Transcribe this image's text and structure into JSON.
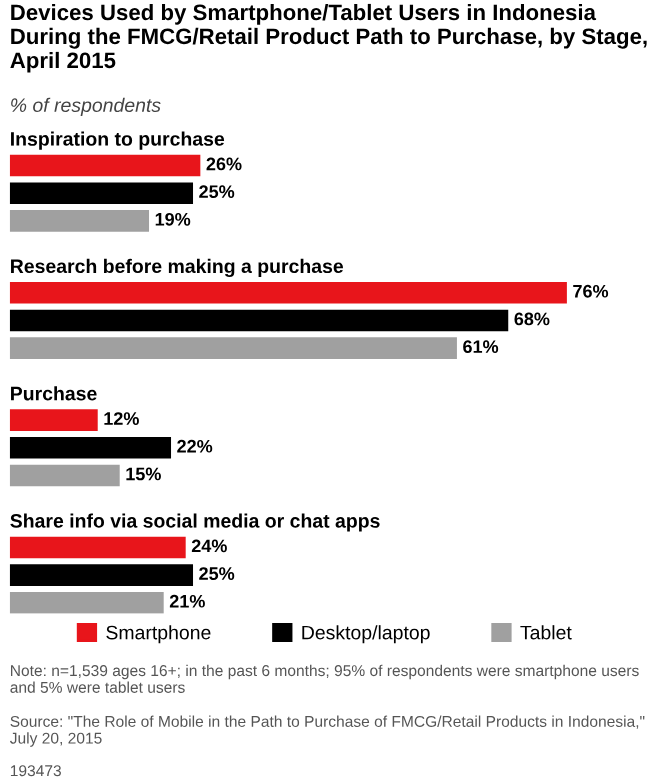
{
  "chart_data": {
    "type": "bar",
    "orientation": "horizontal",
    "title": "Devices Used by Smartphone/Tablet Users in Indonesia During the FMCG/Retail Product Path to Purchase, by Stage, April 2015",
    "subtitle": "% of respondents",
    "categories": [
      "Inspiration to purchase",
      "Research before making a purchase",
      "Purchase",
      "Share info via social media or chat apps"
    ],
    "series": [
      {
        "name": "Smartphone",
        "color": "#e8151b",
        "values": [
          26,
          76,
          12,
          24
        ],
        "value_labels": [
          "26%",
          "76%",
          "12%",
          "24%"
        ]
      },
      {
        "name": "Desktop/laptop",
        "color": "#000000",
        "values": [
          25,
          68,
          22,
          25
        ],
        "value_labels": [
          "25%",
          "68%",
          "22%",
          "25%"
        ]
      },
      {
        "name": "Tablet",
        "color": "#a0a0a0",
        "values": [
          19,
          61,
          15,
          21
        ],
        "value_labels": [
          "19%",
          "61%",
          "15%",
          "21%"
        ]
      }
    ],
    "legend": "bottom",
    "annotations": [
      "Note: n=1,539 ages 16+; in the past 6 months; 95% of respondents were smartphone users and 5% were tablet users",
      "Source: \"The Role of Mobile in the Path to Purchase of FMCG/Retail Products in Indonesia,\" July 20, 2015",
      "193473"
    ]
  }
}
